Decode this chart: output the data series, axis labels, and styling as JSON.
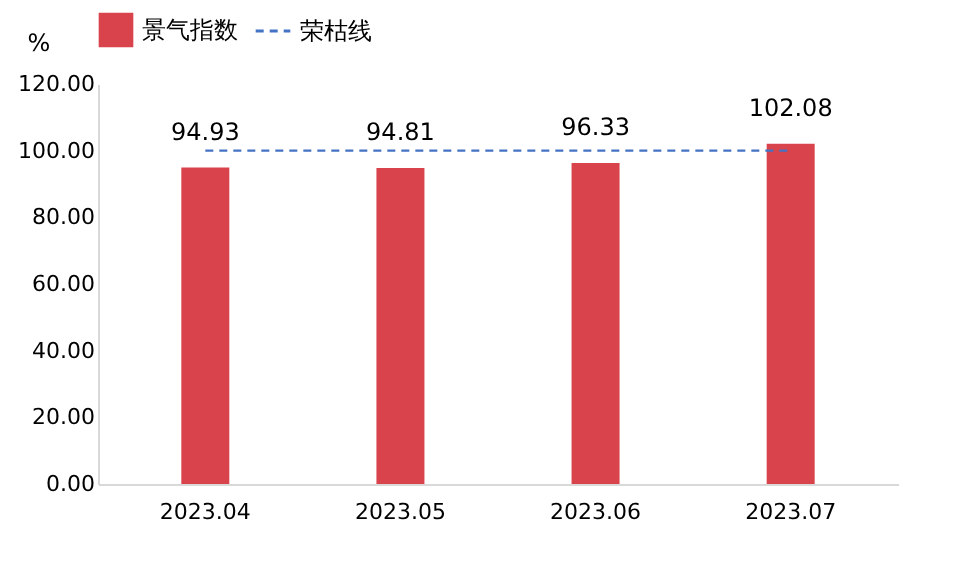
{
  "chart_data": {
    "type": "bar",
    "ylabel": "%",
    "categories": [
      "2023.04",
      "2023.05",
      "2023.06",
      "2023.07"
    ],
    "series": [
      {
        "name": "景气指数",
        "color": "#d9434b",
        "values": [
          94.93,
          94.81,
          96.33,
          102.08
        ],
        "value_labels": [
          "94.93",
          "94.81",
          "96.33",
          "102.08"
        ]
      },
      {
        "name": "荣枯线",
        "type": "line",
        "line_style": "dashed",
        "color": "#4472c4",
        "values": [
          100,
          100,
          100,
          100
        ]
      }
    ],
    "ylim": [
      0,
      120
    ],
    "yticks": [
      {
        "value": 0,
        "label": "0.00"
      },
      {
        "value": 20,
        "label": "20.00"
      },
      {
        "value": 40,
        "label": "40.00"
      },
      {
        "value": 60,
        "label": "60.00"
      },
      {
        "value": 80,
        "label": "80.00"
      },
      {
        "value": 100,
        "label": "100.00"
      },
      {
        "value": 120,
        "label": "120.00"
      }
    ],
    "grid": false,
    "legend": "top"
  }
}
